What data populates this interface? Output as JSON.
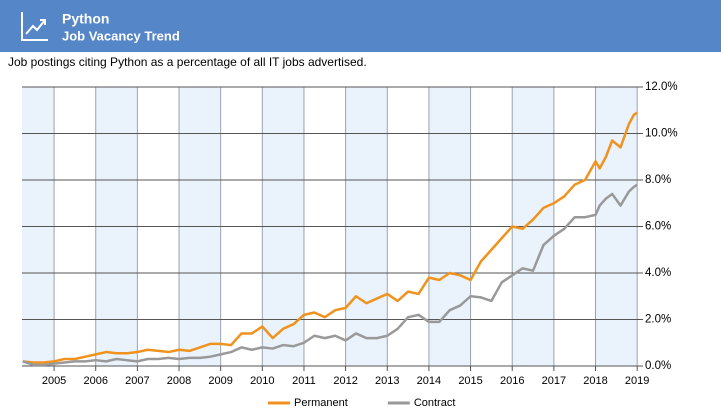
{
  "chart_data": {
    "type": "line",
    "title": "Python",
    "subtitle": "Job Vacancy Trend",
    "caption": "Job postings citing Python as a percentage of all IT jobs advertised.",
    "x": [
      2004.25,
      2004.5,
      2004.75,
      2005,
      2005.25,
      2005.5,
      2005.75,
      2006,
      2006.25,
      2006.5,
      2006.75,
      2007,
      2007.25,
      2007.5,
      2007.75,
      2008,
      2008.25,
      2008.5,
      2008.75,
      2009,
      2009.25,
      2009.5,
      2009.75,
      2010,
      2010.25,
      2010.5,
      2010.75,
      2011,
      2011.25,
      2011.5,
      2011.75,
      2012,
      2012.25,
      2012.5,
      2012.75,
      2013,
      2013.25,
      2013.5,
      2013.75,
      2014,
      2014.25,
      2014.5,
      2014.75,
      2015,
      2015.25,
      2015.5,
      2015.75,
      2016,
      2016.25,
      2016.5,
      2016.75,
      2017,
      2017.25,
      2017.5,
      2017.75,
      2018,
      2018.1,
      2018.25,
      2018.4,
      2018.6,
      2018.8,
      2018.92,
      2019
    ],
    "series": [
      {
        "name": "Permanent",
        "color": "#f0921e",
        "values": [
          0.2,
          0.15,
          0.15,
          0.2,
          0.3,
          0.3,
          0.4,
          0.5,
          0.6,
          0.55,
          0.55,
          0.6,
          0.7,
          0.65,
          0.6,
          0.7,
          0.65,
          0.8,
          0.95,
          0.95,
          0.9,
          1.4,
          1.4,
          1.7,
          1.2,
          1.6,
          1.8,
          2.2,
          2.3,
          2.1,
          2.4,
          2.5,
          3.0,
          2.7,
          2.9,
          3.1,
          2.8,
          3.2,
          3.1,
          3.8,
          3.7,
          4.0,
          3.9,
          3.7,
          4.5,
          5.0,
          5.5,
          6.0,
          5.9,
          6.3,
          6.8,
          7.0,
          7.3,
          7.8,
          8.0,
          8.8,
          8.5,
          9.0,
          9.7,
          9.4,
          10.4,
          10.8,
          10.9
        ]
      },
      {
        "name": "Contract",
        "color": "#999999",
        "values": [
          0.2,
          0.05,
          0.05,
          0.1,
          0.15,
          0.2,
          0.2,
          0.25,
          0.2,
          0.3,
          0.25,
          0.2,
          0.3,
          0.3,
          0.35,
          0.3,
          0.35,
          0.35,
          0.4,
          0.5,
          0.6,
          0.8,
          0.7,
          0.8,
          0.75,
          0.9,
          0.85,
          1.0,
          1.3,
          1.2,
          1.3,
          1.1,
          1.4,
          1.2,
          1.2,
          1.3,
          1.6,
          2.1,
          2.2,
          1.9,
          1.9,
          2.4,
          2.6,
          3.0,
          2.95,
          2.8,
          3.6,
          3.9,
          4.2,
          4.1,
          5.2,
          5.6,
          5.9,
          6.4,
          6.4,
          6.5,
          6.9,
          7.2,
          7.4,
          6.9,
          7.5,
          7.7,
          7.8
        ]
      }
    ],
    "xlim": [
      2004.23,
      2019.02
    ],
    "xticks": [
      2005,
      2006,
      2007,
      2008,
      2009,
      2010,
      2011,
      2012,
      2013,
      2014,
      2015,
      2016,
      2017,
      2018,
      2019
    ],
    "ylim": [
      0,
      12
    ],
    "yticks": [
      {
        "value": 0,
        "label": "0.0%"
      },
      {
        "value": 2,
        "label": "2.0%"
      },
      {
        "value": 4,
        "label": "4.0%"
      },
      {
        "value": 6,
        "label": "6.0%"
      },
      {
        "value": 8,
        "label": "8.0%"
      },
      {
        "value": 10,
        "label": "10.0%"
      },
      {
        "value": 12,
        "label": "12.0%"
      }
    ],
    "grid": true,
    "legend": "bottom"
  }
}
